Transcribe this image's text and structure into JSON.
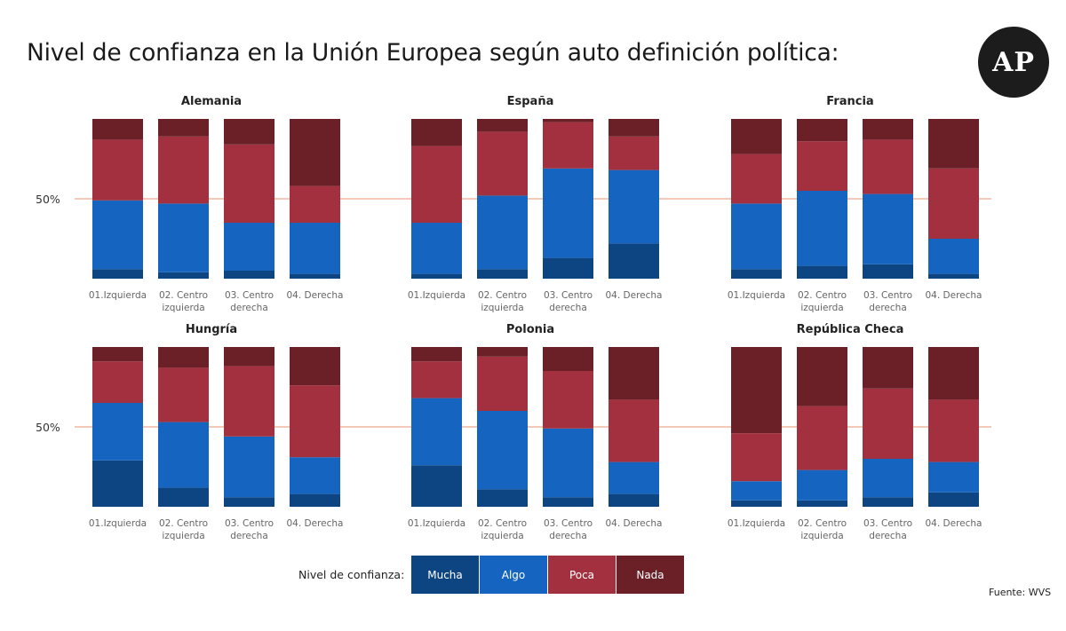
{
  "title": "Nivel de confianza en la Unión Europea según auto definición política:",
  "logo_text": "AP",
  "source": "Fuente: WVS",
  "legend": {
    "label": "Nivel de confianza:",
    "items": [
      {
        "name": "Mucha",
        "color": "#0d4583"
      },
      {
        "name": "Algo",
        "color": "#1565c0"
      },
      {
        "name": "Poca",
        "color": "#a3303e"
      },
      {
        "name": "Nada",
        "color": "#6b2028"
      }
    ]
  },
  "chart_data": [
    {
      "type": "bar",
      "stacked": true,
      "title": "Alemania",
      "categories": [
        "01.Izquierda",
        "02. Centro izquierda",
        "03. Centro derecha",
        "04. Derecha"
      ],
      "series": [
        {
          "name": "Mucha",
          "values": [
            6,
            4,
            5,
            3
          ]
        },
        {
          "name": "Algo",
          "values": [
            43,
            43,
            30,
            32
          ]
        },
        {
          "name": "Poca",
          "values": [
            38,
            42,
            49,
            23
          ]
        },
        {
          "name": "Nada",
          "values": [
            13,
            11,
            16,
            42
          ]
        }
      ],
      "ylim": [
        0,
        100
      ],
      "reference_line": 50,
      "reference_label": "50%"
    },
    {
      "type": "bar",
      "stacked": true,
      "title": "España",
      "categories": [
        "01.Izquierda",
        "02. Centro izquierda",
        "03. Centro derecha",
        "04. Derecha"
      ],
      "series": [
        {
          "name": "Mucha",
          "values": [
            3,
            6,
            13,
            22
          ]
        },
        {
          "name": "Algo",
          "values": [
            32,
            46,
            56,
            46
          ]
        },
        {
          "name": "Poca",
          "values": [
            48,
            40,
            29,
            21
          ]
        },
        {
          "name": "Nada",
          "values": [
            17,
            8,
            2,
            11
          ]
        }
      ],
      "ylim": [
        0,
        100
      ],
      "reference_line": 50,
      "reference_label": ""
    },
    {
      "type": "bar",
      "stacked": true,
      "title": "Francia",
      "categories": [
        "01.Izquierda",
        "02. Centro izquierda",
        "03. Centro derecha",
        "04. Derecha"
      ],
      "series": [
        {
          "name": "Mucha",
          "values": [
            6,
            8,
            9,
            3
          ]
        },
        {
          "name": "Algo",
          "values": [
            41,
            47,
            44,
            22
          ]
        },
        {
          "name": "Poca",
          "values": [
            31,
            31,
            34,
            44
          ]
        },
        {
          "name": "Nada",
          "values": [
            22,
            14,
            13,
            31
          ]
        }
      ],
      "ylim": [
        0,
        100
      ],
      "reference_line": 50,
      "reference_label": ""
    },
    {
      "type": "bar",
      "stacked": true,
      "title": "Hungría",
      "categories": [
        "01.Izquierda",
        "02. Centro izquierda",
        "03. Centro derecha",
        "04. Derecha"
      ],
      "series": [
        {
          "name": "Mucha",
          "values": [
            29,
            12,
            6,
            8
          ]
        },
        {
          "name": "Algo",
          "values": [
            36,
            41,
            38,
            23
          ]
        },
        {
          "name": "Poca",
          "values": [
            26,
            34,
            44,
            45
          ]
        },
        {
          "name": "Nada",
          "values": [
            9,
            13,
            12,
            24
          ]
        }
      ],
      "ylim": [
        0,
        100
      ],
      "reference_line": 50,
      "reference_label": "50%"
    },
    {
      "type": "bar",
      "stacked": true,
      "title": "Polonia",
      "categories": [
        "01.Izquierda",
        "02. Centro izquierda",
        "03. Centro derecha",
        "04. Derecha"
      ],
      "series": [
        {
          "name": "Mucha",
          "values": [
            26,
            11,
            6,
            8
          ]
        },
        {
          "name": "Algo",
          "values": [
            42,
            49,
            43,
            20
          ]
        },
        {
          "name": "Poca",
          "values": [
            23,
            34,
            36,
            39
          ]
        },
        {
          "name": "Nada",
          "values": [
            9,
            6,
            15,
            33
          ]
        }
      ],
      "ylim": [
        0,
        100
      ],
      "reference_line": 50,
      "reference_label": ""
    },
    {
      "type": "bar",
      "stacked": true,
      "title": "República Checa",
      "categories": [
        "01.Izquierda",
        "02. Centro izquierda",
        "03. Centro derecha",
        "04. Derecha"
      ],
      "series": [
        {
          "name": "Mucha",
          "values": [
            4,
            4,
            6,
            9
          ]
        },
        {
          "name": "Algo",
          "values": [
            12,
            19,
            24,
            19
          ]
        },
        {
          "name": "Poca",
          "values": [
            30,
            40,
            44,
            39
          ]
        },
        {
          "name": "Nada",
          "values": [
            54,
            37,
            26,
            33
          ]
        }
      ],
      "ylim": [
        0,
        100
      ],
      "reference_line": 50,
      "reference_label": ""
    }
  ]
}
